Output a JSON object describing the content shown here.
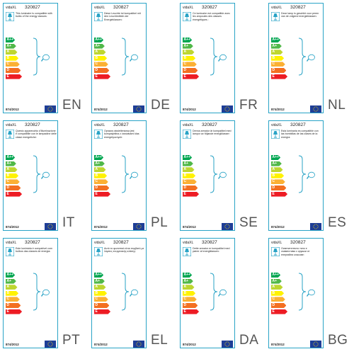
{
  "brand": "vidaXL",
  "code": "320827",
  "regulation": "874/2012",
  "energy_classes": [
    "A++",
    "A+",
    "A",
    "B",
    "C",
    "D",
    "E"
  ],
  "class_colors": [
    "#00a651",
    "#50b848",
    "#bed630",
    "#fff200",
    "#fbb034",
    "#f36f21",
    "#ed1c24"
  ],
  "labels": [
    {
      "lang": "EN",
      "text": "This luminaire is compatible with bulbs of the energy classes:"
    },
    {
      "lang": "DE",
      "text": "Diese Leuchte ist kompatibel mit den Leuchtmitteln der Energieklassen:"
    },
    {
      "lang": "FR",
      "text": "Ce luminaire est compatible avec les ampoules des classes énergétiques :"
    },
    {
      "lang": "NL",
      "text": "Deze lamp is geschikt voor peren van de volgend energieklassen:"
    },
    {
      "lang": "IT",
      "text": "Questo apparecchio d'illuminazione è compatibile con le lampadine delle classi energetiche:"
    },
    {
      "lang": "PL",
      "text": "Oprawa oświetleniowa jest kompatybilna z żarówkami klas energetycznych:"
    },
    {
      "lang": "SE",
      "text": "Denna armatur är kompatibel med lampor av följande energiklasser:"
    },
    {
      "lang": "ES",
      "text": "Esta luminaria es compatible con las bombillas de las clases de la energía:"
    },
    {
      "lang": "PT",
      "text": "Este luminária é compatível com bulbos das classes de energia:"
    },
    {
      "lang": "EL",
      "text": "Αυτό το φωτιστικό είναι συμβατό με λάμπες ενεργειακής κλάσης:"
    },
    {
      "lang": "DA",
      "text": "Dette armatur er kompatibel med pærer af energiklassen:"
    },
    {
      "lang": "BG",
      "text": "Осветителното тяло е съвместимо с крушки от енергийни класове:"
    }
  ]
}
